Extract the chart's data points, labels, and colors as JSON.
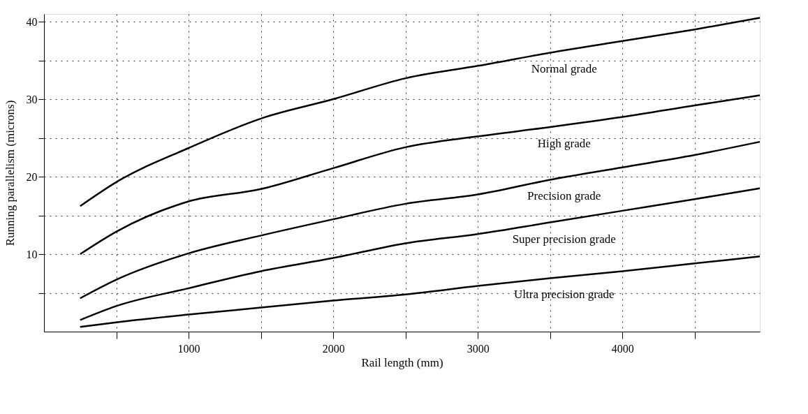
{
  "chart_data": {
    "type": "line",
    "xlabel": "Rail length (mm)",
    "ylabel": "Running parallelism (microns)",
    "x": [
      250,
      500,
      1000,
      1500,
      2000,
      2500,
      3000,
      3500,
      4000,
      4500,
      4950
    ],
    "series": [
      {
        "name": "Normal grade",
        "color": "#000000",
        "values": [
          16.2,
          19.3,
          23.7,
          27.5,
          30.0,
          32.7,
          34.3,
          36.0,
          37.5,
          39.0,
          40.5
        ]
      },
      {
        "name": "High grade",
        "color": "#000000",
        "values": [
          10.0,
          12.9,
          16.8,
          18.4,
          21.1,
          23.8,
          25.2,
          26.4,
          27.7,
          29.2,
          30.5
        ]
      },
      {
        "name": "Precision grade",
        "color": "#000000",
        "values": [
          4.3,
          6.7,
          10.1,
          12.4,
          14.5,
          16.5,
          17.7,
          19.6,
          21.2,
          22.8,
          24.5
        ]
      },
      {
        "name": "Super precision grade",
        "color": "#000000",
        "values": [
          1.5,
          3.3,
          5.6,
          7.8,
          9.5,
          11.4,
          12.6,
          14.1,
          15.6,
          17.1,
          18.5
        ]
      },
      {
        "name": "Ultra precision grade",
        "color": "#000000",
        "values": [
          0.6,
          1.2,
          2.2,
          3.1,
          4.0,
          4.8,
          5.9,
          6.9,
          7.8,
          8.8,
          9.7
        ]
      }
    ],
    "xlim": [
      0,
      4950
    ],
    "xticks": [
      {
        "value": 500,
        "label": null
      },
      1000,
      {
        "value": 1500,
        "label": null
      },
      2000,
      {
        "value": 2500,
        "label": null
      },
      3000,
      {
        "value": 3500,
        "label": null
      },
      4000,
      {
        "value": 4500,
        "label": null
      }
    ],
    "ylim": [
      0,
      41
    ],
    "yticks": [
      {
        "value": 5,
        "label": null
      },
      10,
      {
        "value": 15,
        "label": null
      },
      20,
      {
        "value": 25,
        "label": null
      },
      30,
      {
        "value": 35,
        "label": null
      },
      40
    ],
    "grid": true,
    "legend": false,
    "marker": "none",
    "line_style": "solid"
  }
}
